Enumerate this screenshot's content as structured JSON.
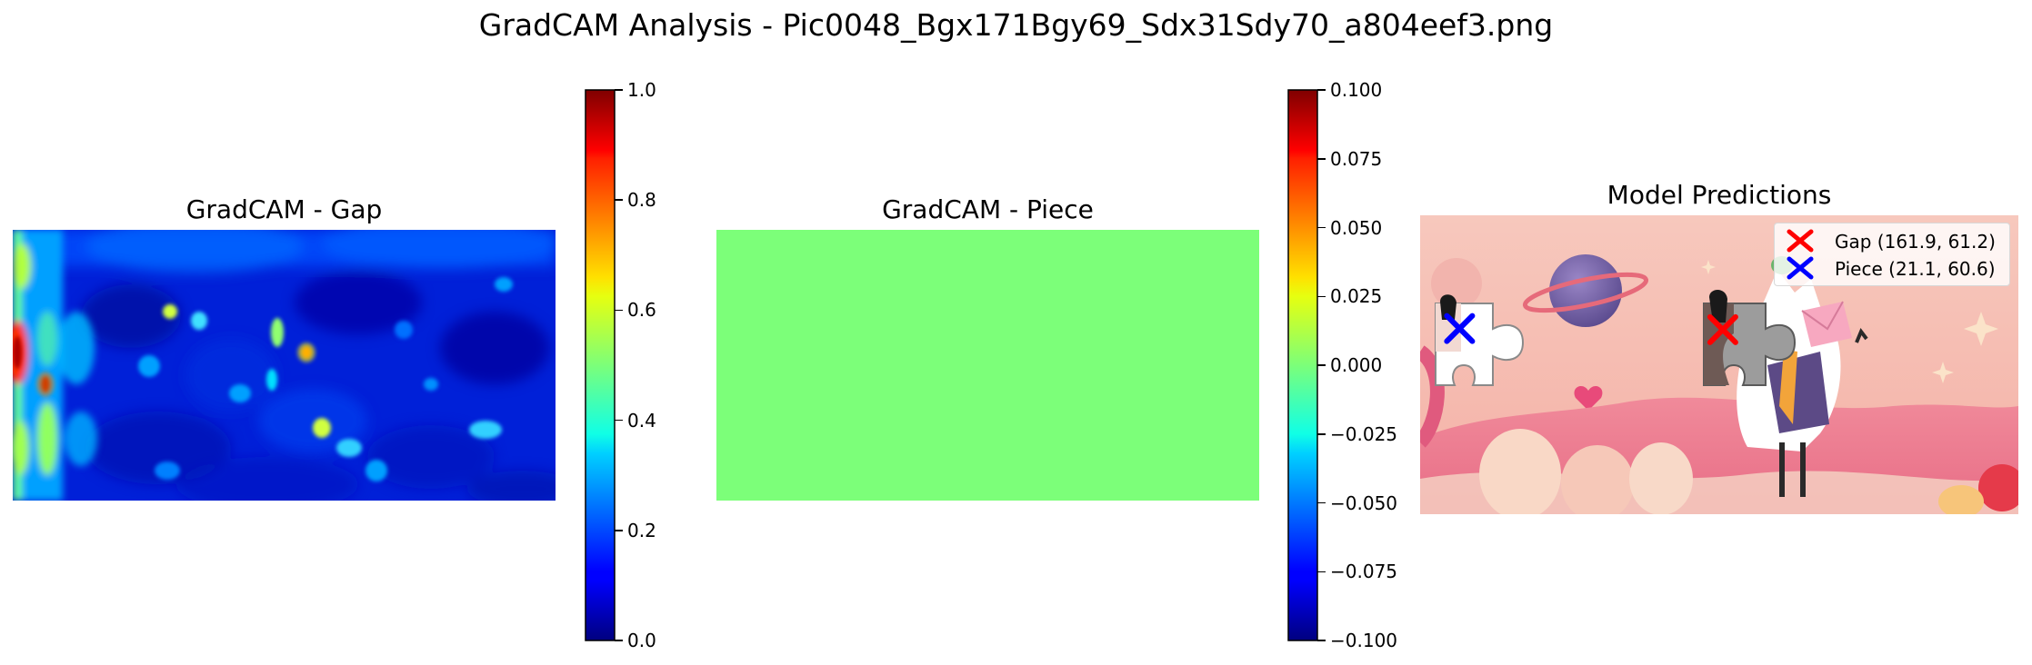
{
  "figure": {
    "title": "GradCAM Analysis - Pic0048_Bgx171Bgy69_Sdx31Sdy70_a804eef3.png"
  },
  "chart_data": [
    {
      "type": "heatmap",
      "title": "GradCAM - Gap",
      "colormap": "jet",
      "colorbar": {
        "range": [
          0.0,
          1.0
        ],
        "ticks": [
          "0.0",
          "0.2",
          "0.4",
          "0.6",
          "0.8",
          "1.0"
        ]
      },
      "hotspots": [
        {
          "x": 0.01,
          "y": 0.45,
          "value": 0.92
        },
        {
          "x": 0.06,
          "y": 0.57,
          "value": 0.88
        },
        {
          "x": 0.54,
          "y": 0.45,
          "value": 0.72
        },
        {
          "x": 0.29,
          "y": 0.3,
          "value": 0.55
        },
        {
          "x": 0.49,
          "y": 0.38,
          "value": 0.5
        },
        {
          "x": 0.57,
          "y": 0.73,
          "value": 0.45
        },
        {
          "x": 0.87,
          "y": 0.74,
          "value": 0.4
        }
      ]
    },
    {
      "type": "heatmap",
      "title": "GradCAM - Piece",
      "colormap": "jet",
      "uniform_value": 0.0,
      "colorbar": {
        "range": [
          -0.1,
          0.1
        ],
        "ticks": [
          "−0.100",
          "−0.075",
          "−0.050",
          "−0.025",
          "0.000",
          "0.025",
          "0.050",
          "0.075",
          "0.100"
        ]
      }
    },
    {
      "type": "scatter",
      "title": "Model Predictions",
      "series": [
        {
          "name": "Gap (161.9, 61.2)",
          "x": 161.9,
          "y": 61.2,
          "color": "#ff0000",
          "marker": "x"
        },
        {
          "name": "Piece (21.1, 60.6)",
          "x": 21.1,
          "y": 60.6,
          "color": "#0000ff",
          "marker": "x"
        }
      ]
    }
  ]
}
